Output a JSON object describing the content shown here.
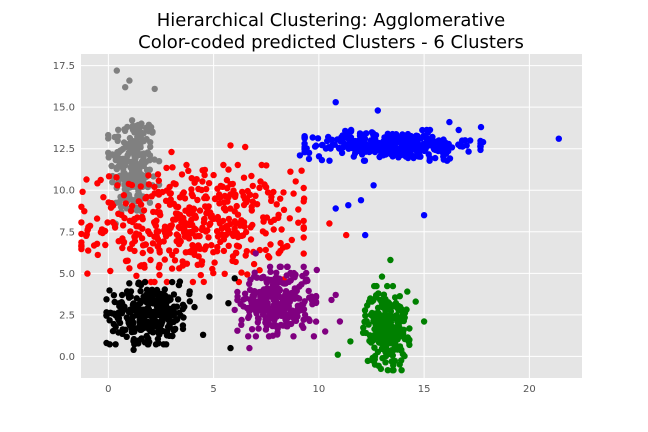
{
  "chart_data": {
    "type": "scatter",
    "title": "Hierarchical Clustering: Agglomerative",
    "subtitle": "Color-coded predicted Clusters - 6 Clusters",
    "xlabel": "",
    "ylabel": "",
    "xlim": [
      -1.3,
      22.5
    ],
    "ylim": [
      -1.3,
      18.2
    ],
    "x_ticks": [
      0,
      5,
      10,
      15,
      20
    ],
    "y_ticks": [
      0.0,
      2.5,
      5.0,
      7.5,
      10.0,
      12.5,
      15.0,
      17.5
    ],
    "x_tick_labels": [
      "0",
      "5",
      "10",
      "15",
      "20"
    ],
    "y_tick_labels": [
      "0.0",
      "2.5",
      "5.0",
      "7.5",
      "10.0",
      "12.5",
      "15.0",
      "17.5"
    ],
    "grid": true,
    "background_color": "#e5e5e5",
    "grid_color": "#ffffff",
    "series": [
      {
        "color": "#808080",
        "center": [
          1.2,
          11.5
        ],
        "spread": [
          0.55,
          1.6
        ],
        "count": 220,
        "extra_points": [
          [
            0.4,
            17.2
          ],
          [
            1.0,
            16.6
          ],
          [
            0.8,
            16.2
          ],
          [
            2.2,
            16.1
          ],
          [
            0.3,
            13.2
          ],
          [
            2.1,
            10.3
          ],
          [
            0.6,
            9.0
          ]
        ]
      },
      {
        "color": "#ff0000",
        "center": [
          4.0,
          8.0
        ],
        "spread": [
          2.4,
          1.6
        ],
        "count": 460,
        "extra_points": [
          [
            1.0,
            5.3
          ],
          [
            1.5,
            4.4
          ],
          [
            2.0,
            5.8
          ],
          [
            5.8,
            12.7
          ],
          [
            6.5,
            12.6
          ],
          [
            8.8,
            9.8
          ],
          [
            9.3,
            9.5
          ],
          [
            10.5,
            8.0
          ],
          [
            11.3,
            7.3
          ],
          [
            3.0,
            12.3
          ]
        ]
      },
      {
        "color": "#0000ff",
        "center": [
          13.5,
          12.7
        ],
        "spread": [
          1.9,
          0.42
        ],
        "count": 340,
        "extra_points": [
          [
            21.4,
            13.1
          ],
          [
            17.7,
            13.8
          ],
          [
            17.8,
            12.9
          ],
          [
            10.8,
            15.3
          ],
          [
            12.8,
            14.8
          ],
          [
            12.6,
            10.3
          ],
          [
            11.4,
            9.1
          ],
          [
            12.0,
            9.4
          ],
          [
            15.0,
            8.5
          ],
          [
            10.8,
            8.9
          ],
          [
            12.2,
            7.3
          ],
          [
            16.2,
            14.1
          ],
          [
            9.1,
            12.1
          ]
        ]
      },
      {
        "color": "#000000",
        "center": [
          2.0,
          2.6
        ],
        "spread": [
          0.95,
          0.85
        ],
        "count": 300,
        "extra_points": [
          [
            3.4,
            4.5
          ],
          [
            4.8,
            3.6
          ],
          [
            5.7,
            3.2
          ],
          [
            6.0,
            4.7
          ],
          [
            5.8,
            0.5
          ],
          [
            4.5,
            1.3
          ],
          [
            0.5,
            2.3
          ],
          [
            1.2,
            0.4
          ]
        ]
      },
      {
        "color": "#800080",
        "center": [
          8.0,
          3.3
        ],
        "spread": [
          0.85,
          0.95
        ],
        "count": 310,
        "extra_points": [
          [
            6.7,
            0.5
          ],
          [
            9.9,
            5.2
          ],
          [
            10.8,
            3.7
          ],
          [
            10.6,
            3.4
          ],
          [
            7.0,
            6.2
          ],
          [
            11.0,
            2.1
          ],
          [
            10.3,
            1.5
          ],
          [
            6.0,
            2.8
          ]
        ]
      },
      {
        "color": "#008000",
        "center": [
          13.2,
          1.7
        ],
        "spread": [
          0.5,
          1.15
        ],
        "count": 240,
        "extra_points": [
          [
            10.9,
            0.1
          ],
          [
            13.4,
            5.8
          ],
          [
            14.2,
            3.9
          ],
          [
            15.0,
            2.1
          ],
          [
            14.6,
            3.3
          ],
          [
            11.5,
            0.9
          ],
          [
            13.0,
            4.8
          ]
        ]
      }
    ]
  }
}
